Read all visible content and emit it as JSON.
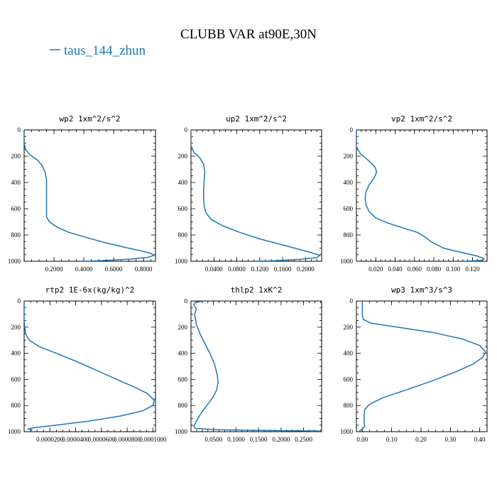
{
  "figure": {
    "title": "CLUBB VAR at90E,30N",
    "legend": [
      {
        "label": "taus_144_zhun",
        "color": "#1f77b4"
      }
    ]
  },
  "chart_data": [
    {
      "type": "line",
      "title": "wp2  1xm^2/s^2",
      "xlim": [
        0,
        0.88
      ],
      "ylim": [
        1000,
        0
      ],
      "xticks": [
        0.2,
        0.4,
        0.6,
        0.8
      ],
      "xtick_labels": [
        "0.2000",
        "0.4000",
        "0.6000",
        "0.8000"
      ],
      "yticks": [
        0,
        200,
        400,
        600,
        800,
        1000
      ],
      "series": [
        {
          "name": "taus_144_zhun",
          "x": [
            0.0,
            0.0,
            0.01,
            0.04,
            0.09,
            0.12,
            0.14,
            0.15,
            0.15,
            0.15,
            0.15,
            0.15,
            0.17,
            0.22,
            0.3,
            0.42,
            0.55,
            0.68,
            0.78,
            0.85,
            0.87,
            0.83,
            0.72,
            0.55,
            0.4
          ],
          "y": [
            0,
            100,
            150,
            190,
            230,
            270,
            320,
            380,
            450,
            520,
            600,
            660,
            700,
            740,
            780,
            820,
            860,
            895,
            920,
            940,
            955,
            970,
            983,
            993,
            1000
          ]
        }
      ]
    },
    {
      "type": "line",
      "title": "up2  1xm^2/s^2",
      "xlim": [
        0,
        0.228
      ],
      "ylim": [
        1000,
        0
      ],
      "xticks": [
        0.04,
        0.08,
        0.12,
        0.16,
        0.2
      ],
      "xtick_labels": [
        "0.0400",
        "0.0800",
        "0.1200",
        "0.1600",
        "0.2000"
      ],
      "yticks": [
        0,
        200,
        400,
        600,
        800,
        1000
      ],
      "series": [
        {
          "name": "taus_144_zhun",
          "x": [
            0.0,
            0.0,
            0.005,
            0.015,
            0.022,
            0.024,
            0.023,
            0.022,
            0.022,
            0.023,
            0.026,
            0.035,
            0.055,
            0.085,
            0.12,
            0.155,
            0.185,
            0.21,
            0.225,
            0.22,
            0.19,
            0.15,
            0.11
          ],
          "y": [
            0,
            120,
            170,
            210,
            260,
            320,
            380,
            450,
            520,
            580,
            630,
            680,
            730,
            780,
            830,
            870,
            905,
            935,
            955,
            972,
            985,
            995,
            1000
          ]
        }
      ]
    },
    {
      "type": "line",
      "title": "vp2  1xm^2/s^2",
      "xlim": [
        0,
        0.135
      ],
      "ylim": [
        1000,
        0
      ],
      "xticks": [
        0.02,
        0.04,
        0.06,
        0.08,
        0.1,
        0.12
      ],
      "xtick_labels": [
        "0.020",
        "0.040",
        "0.060",
        "0.080",
        "0.100",
        "0.120"
      ],
      "yticks": [
        0,
        200,
        400,
        600,
        800,
        1000
      ],
      "series": [
        {
          "name": "taus_144_zhun",
          "x": [
            0.0,
            0.0,
            0.004,
            0.012,
            0.019,
            0.021,
            0.018,
            0.013,
            0.01,
            0.009,
            0.01,
            0.013,
            0.02,
            0.033,
            0.05,
            0.063,
            0.07,
            0.077,
            0.09,
            0.11,
            0.125,
            0.132,
            0.13,
            0.11
          ],
          "y": [
            0,
            130,
            180,
            230,
            280,
            320,
            370,
            420,
            470,
            520,
            570,
            620,
            670,
            710,
            750,
            780,
            810,
            850,
            900,
            935,
            960,
            980,
            993,
            1000
          ]
        }
      ]
    },
    {
      "type": "line",
      "title": "rtp2  1E-6x(kg/kg)^2",
      "xlim": [
        0,
        0.000102
      ],
      "ylim": [
        1000,
        0
      ],
      "xticks": [
        2e-05,
        4e-05,
        6e-05,
        8e-05,
        0.0001
      ],
      "xtick_labels": [
        "0.0000200",
        "0.0000400",
        "0.0000600",
        "0.0000800",
        "0.0001000"
      ],
      "yticks": [
        0,
        200,
        400,
        600,
        800,
        1000
      ],
      "series": [
        {
          "name": "taus_144_zhun",
          "x": [
            0.0,
            0.0,
            1e-06,
            4e-06,
            1.2e-05,
            2.5e-05,
            4e-05,
            5.6e-05,
            7.2e-05,
            8.6e-05,
            9.6e-05,
            0.000101,
            0.0001,
            9.2e-05,
            7.5e-05,
            5e-05,
            2.5e-05,
            6e-06,
            3e-06,
            6e-06,
            5e-06
          ],
          "y": [
            0,
            150,
            250,
            300,
            350,
            400,
            460,
            530,
            600,
            660,
            710,
            760,
            800,
            840,
            880,
            920,
            950,
            972,
            980,
            985,
            995
          ]
        }
      ]
    },
    {
      "type": "line",
      "title": "thlp2  1xK^2",
      "xlim": [
        0,
        0.29
      ],
      "ylim": [
        1000,
        0
      ],
      "xticks": [
        0.05,
        0.1,
        0.15,
        0.2,
        0.25
      ],
      "xtick_labels": [
        "0.0500",
        "0.1000",
        "0.1500",
        "0.2000",
        "0.2500"
      ],
      "yticks": [
        0,
        200,
        400,
        600,
        800,
        1000
      ],
      "series": [
        {
          "name": "taus_144_zhun",
          "x": [
            0.03,
            0.01,
            0.006,
            0.012,
            0.008,
            0.012,
            0.02,
            0.03,
            0.042,
            0.052,
            0.058,
            0.06,
            0.057,
            0.048,
            0.035,
            0.022,
            0.012,
            0.006,
            0.01,
            0.06,
            0.15,
            0.24,
            0.29
          ],
          "y": [
            0,
            10,
            30,
            60,
            100,
            180,
            250,
            320,
            400,
            480,
            560,
            620,
            680,
            740,
            800,
            860,
            920,
            960,
            975,
            985,
            990,
            993,
            995
          ]
        }
      ]
    },
    {
      "type": "line",
      "title": "wp3  1xm^3/s^3",
      "xlim": [
        -0.02,
        0.425
      ],
      "ylim": [
        1000,
        0
      ],
      "xticks": [
        0.0,
        0.1,
        0.2,
        0.3,
        0.4
      ],
      "xtick_labels": [
        "0.00",
        "0.10",
        "0.20",
        "0.30",
        "0.40"
      ],
      "yticks": [
        0,
        200,
        400,
        600,
        800,
        1000
      ],
      "series": [
        {
          "name": "taus_144_zhun",
          "x": [
            0.0,
            0.0,
            0.003,
            0.03,
            0.12,
            0.24,
            0.34,
            0.4,
            0.42,
            0.41,
            0.38,
            0.32,
            0.24,
            0.15,
            0.07,
            0.025,
            0.008,
            0.006,
            0.006,
            0.008,
            0.0,
            -0.01
          ],
          "y": [
            0,
            100,
            140,
            170,
            200,
            240,
            290,
            340,
            390,
            430,
            480,
            540,
            610,
            680,
            740,
            790,
            830,
            880,
            930,
            960,
            980,
            995
          ]
        }
      ]
    }
  ]
}
